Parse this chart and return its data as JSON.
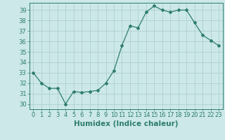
{
  "x": [
    0,
    1,
    2,
    3,
    4,
    5,
    6,
    7,
    8,
    9,
    10,
    11,
    12,
    13,
    14,
    15,
    16,
    17,
    18,
    19,
    20,
    21,
    22,
    23
  ],
  "y": [
    33,
    32,
    31.5,
    31.5,
    30,
    31.2,
    31.1,
    31.2,
    31.3,
    32,
    33.2,
    35.6,
    37.5,
    37.3,
    38.8,
    39.4,
    39.0,
    38.8,
    39.0,
    39.0,
    37.8,
    36.6,
    36.1,
    35.6
  ],
  "line_color": "#2e7d6e",
  "bg_color": "#cce8e8",
  "grid_color": "#aacccc",
  "xlabel": "Humidex (Indice chaleur)",
  "ylim": [
    29.5,
    39.7
  ],
  "xlim": [
    -0.5,
    23.5
  ],
  "yticks": [
    30,
    31,
    32,
    33,
    34,
    35,
    36,
    37,
    38,
    39
  ],
  "xticks": [
    0,
    1,
    2,
    3,
    4,
    5,
    6,
    7,
    8,
    9,
    10,
    11,
    12,
    13,
    14,
    15,
    16,
    17,
    18,
    19,
    20,
    21,
    22,
    23
  ],
  "marker": "D",
  "marker_size": 2.0,
  "line_width": 0.9,
  "xlabel_fontsize": 7.5,
  "tick_fontsize": 6.0
}
